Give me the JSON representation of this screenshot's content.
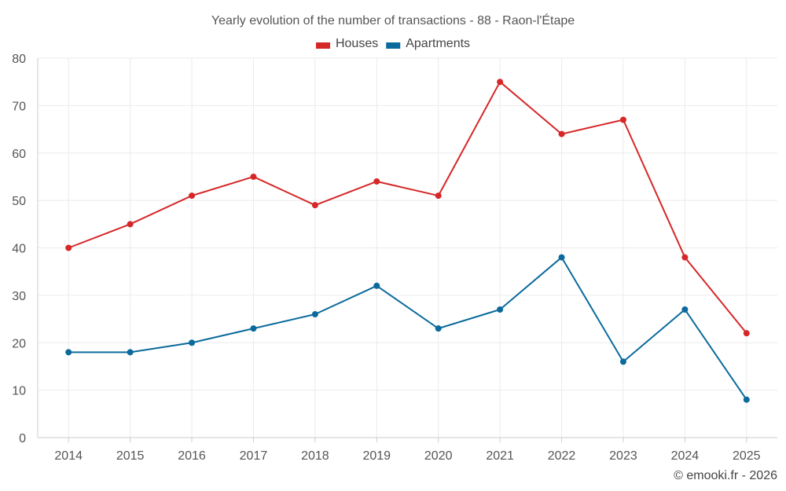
{
  "chart_data": {
    "type": "line",
    "title": "Yearly evolution of the number of transactions - 88 - Raon-l'Étape",
    "categories": [
      "2014",
      "2015",
      "2016",
      "2017",
      "2018",
      "2019",
      "2020",
      "2021",
      "2022",
      "2023",
      "2024",
      "2025"
    ],
    "series": [
      {
        "name": "Houses",
        "color": "#d62728",
        "values": [
          40,
          45,
          51,
          55,
          49,
          54,
          51,
          75,
          64,
          67,
          38,
          22
        ]
      },
      {
        "name": "Apartments",
        "color": "#0b6a9c",
        "values": [
          18,
          18,
          20,
          23,
          26,
          32,
          23,
          27,
          38,
          16,
          27,
          8
        ]
      }
    ],
    "yticks": [
      0,
      10,
      20,
      30,
      40,
      50,
      60,
      70,
      80
    ],
    "ylim": [
      0,
      80
    ],
    "xlabel": "",
    "ylabel": "",
    "legend_position": "top-center",
    "grid": true
  },
  "credit": "© emooki.fr - 2026"
}
